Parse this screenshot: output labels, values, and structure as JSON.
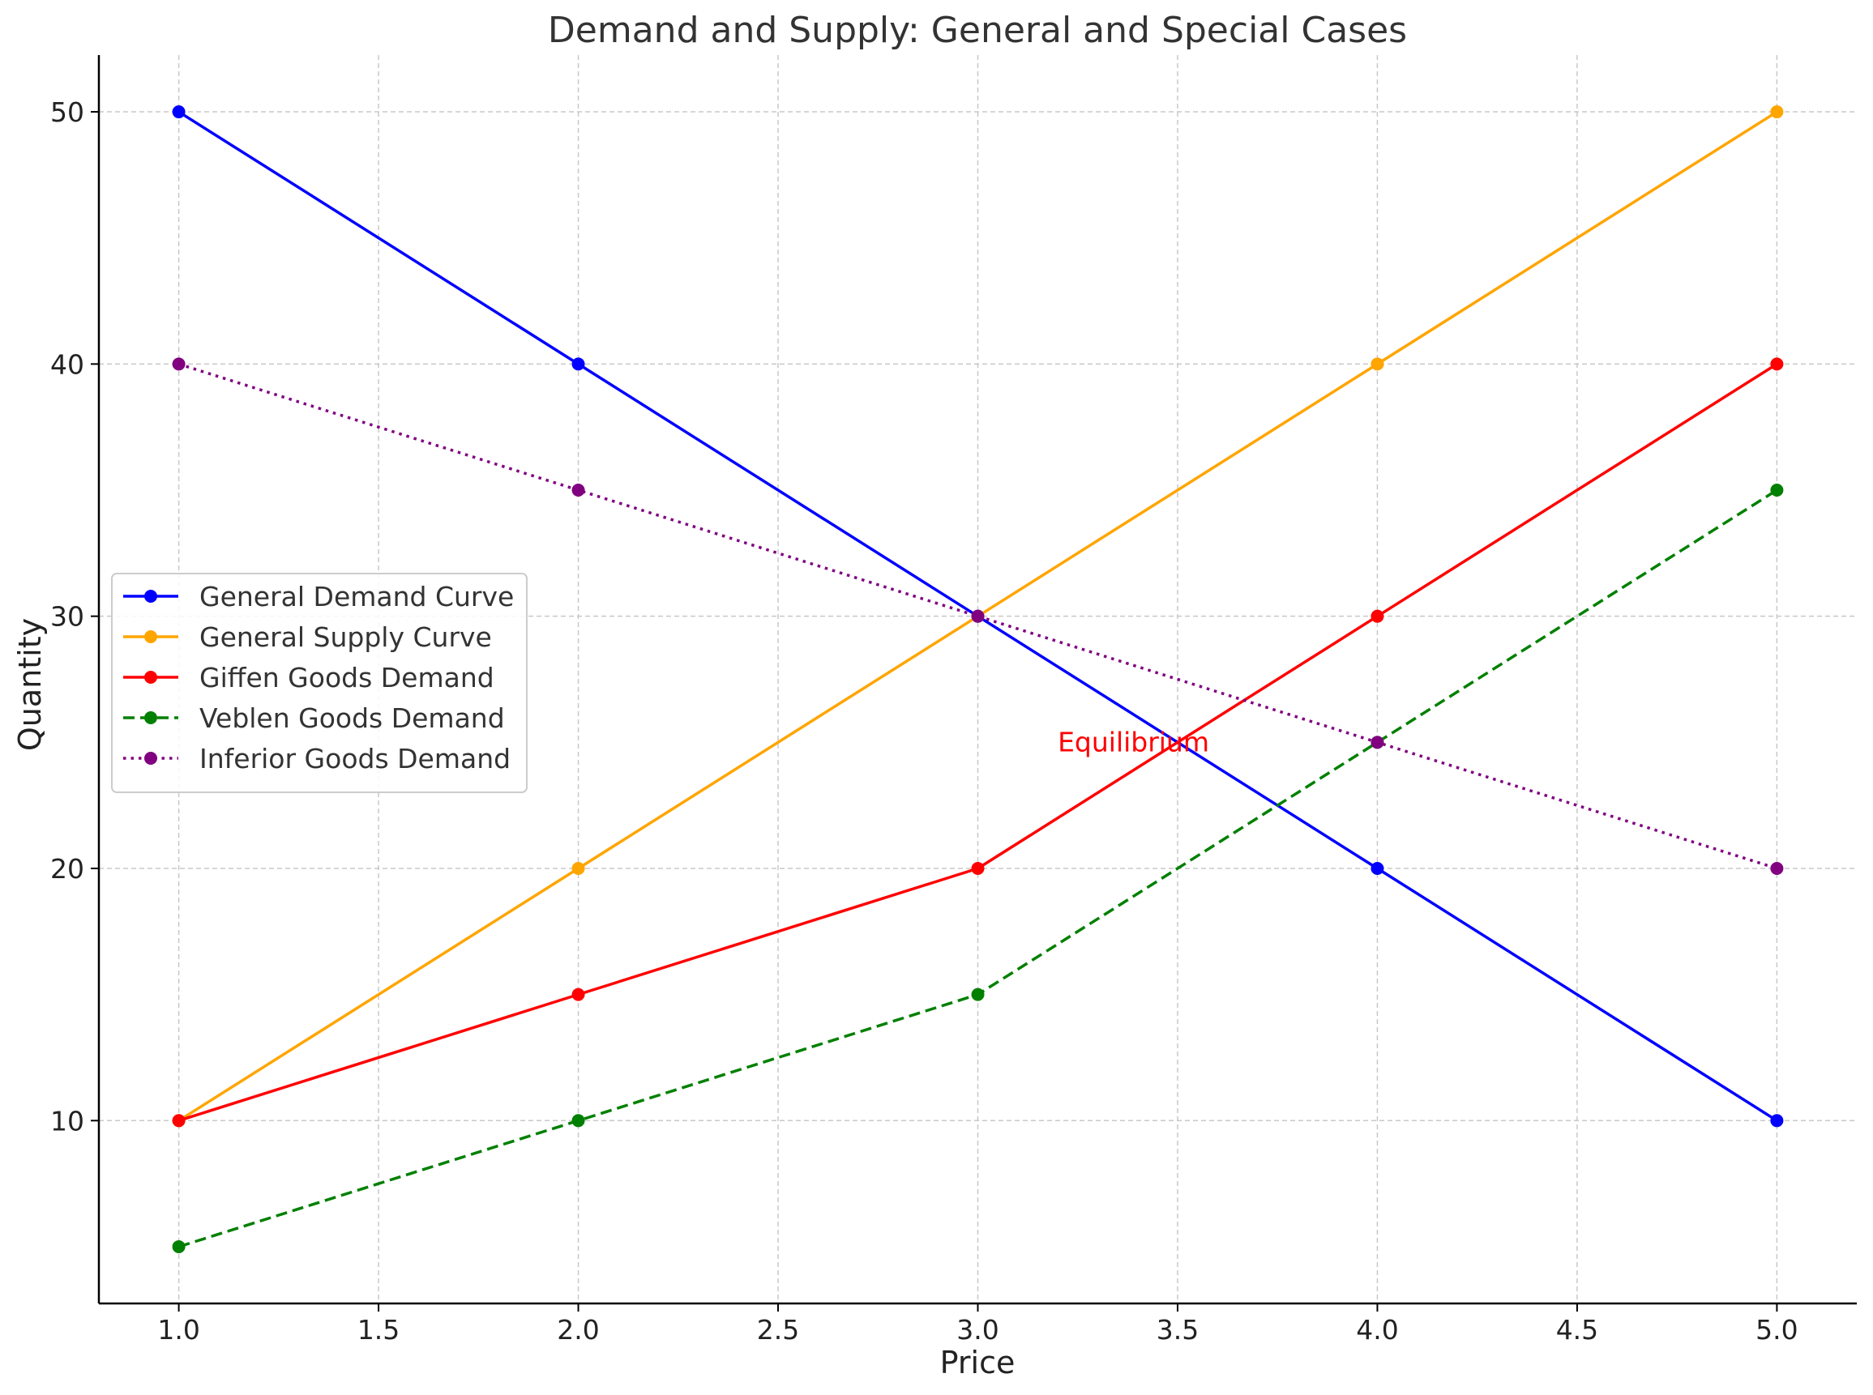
{
  "chart_data": {
    "type": "line",
    "title": "Demand and Supply: General and Special Cases",
    "xlabel": "Price",
    "ylabel": "Quantity",
    "xlim": [
      0.8,
      5.2
    ],
    "ylim": [
      2.75,
      52.25
    ],
    "x_ticks": [
      1.0,
      1.5,
      2.0,
      2.5,
      3.0,
      3.5,
      4.0,
      4.5,
      5.0
    ],
    "x_tick_labels": [
      "1.0",
      "1.5",
      "2.0",
      "2.5",
      "3.0",
      "3.5",
      "4.0",
      "4.5",
      "5.0"
    ],
    "y_ticks": [
      10,
      20,
      30,
      40,
      50
    ],
    "y_tick_labels": [
      "10",
      "20",
      "30",
      "40",
      "50"
    ],
    "grid": true,
    "legend_position": "center-left",
    "x": [
      1,
      2,
      3,
      4,
      5
    ],
    "series": [
      {
        "name": "General Demand Curve",
        "values": [
          50,
          40,
          30,
          20,
          10
        ],
        "color": "#0000ff",
        "linestyle": "solid"
      },
      {
        "name": "General Supply Curve",
        "values": [
          10,
          20,
          30,
          40,
          50
        ],
        "color": "#ffa500",
        "linestyle": "solid"
      },
      {
        "name": "Giffen Goods Demand",
        "values": [
          10,
          15,
          20,
          30,
          40
        ],
        "color": "#ff0000",
        "linestyle": "solid"
      },
      {
        "name": "Veblen Goods Demand",
        "values": [
          5,
          10,
          15,
          25,
          35
        ],
        "color": "#008000",
        "linestyle": "dashed"
      },
      {
        "name": "Inferior Goods Demand",
        "values": [
          40,
          35,
          30,
          25,
          20
        ],
        "color": "#800080",
        "linestyle": "dotted"
      }
    ],
    "annotations": [
      {
        "text": "Equilibrium",
        "x": 3.2,
        "y": 25,
        "color": "#ff0000"
      }
    ]
  }
}
